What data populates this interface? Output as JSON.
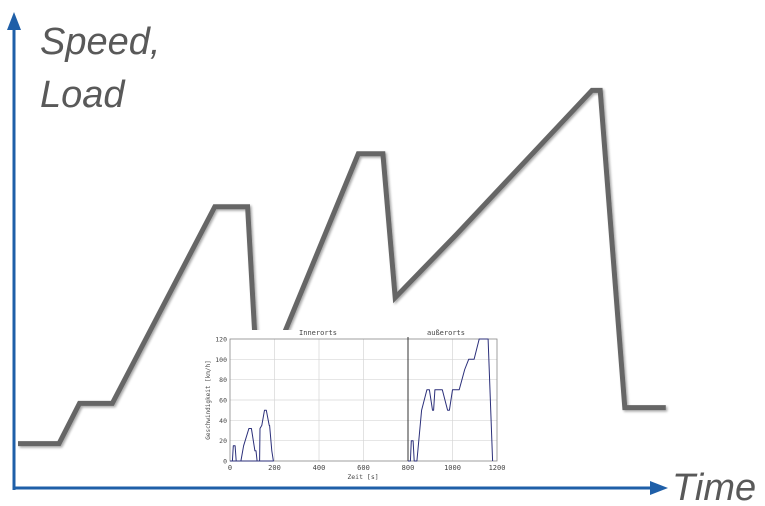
{
  "chart_data": [
    {
      "type": "line",
      "ylabel_lines": [
        "Speed,",
        "Load"
      ],
      "xlabel": "Time",
      "colors": {
        "profile": "#666666",
        "axis": "#1f5fa8"
      },
      "grid": false,
      "series": [
        {
          "x": [
            0,
            10,
            15,
            23,
            48,
            56,
            58,
            63,
            83,
            89,
            92,
            107,
            140,
            142,
            148,
            158
          ],
          "values": [
            1.05,
            1.05,
            2.0,
            2.0,
            6.65,
            6.65,
            3.2,
            3.2,
            7.9,
            7.9,
            4.5,
            6.0,
            9.4,
            9.4,
            1.9,
            1.9
          ]
        }
      ]
    },
    {
      "type": "line",
      "title_left": "Innerorts",
      "title_right": "außerorts",
      "xlabel": "Zeit [s]",
      "ylabel": "Geschwindigkeit [km/h]",
      "xlim": [
        0,
        1200
      ],
      "ylim": [
        0,
        120
      ],
      "xticks": [
        0,
        200,
        400,
        600,
        800,
        1000,
        1200
      ],
      "yticks": [
        0,
        20,
        40,
        60,
        80,
        100,
        120
      ],
      "grid": true,
      "divider_x": 800,
      "colors": {
        "line": "#2b2f7a"
      },
      "series": [
        {
          "x": [
            0,
            11,
            15,
            23,
            28,
            49,
            61,
            85,
            96,
            112,
            117,
            122,
            133,
            135,
            143,
            155,
            163,
            176,
            178,
            188,
            195,
            0
          ],
          "values": [
            0,
            0,
            15,
            15,
            0,
            0,
            15,
            32,
            32,
            10,
            10,
            0,
            0,
            32,
            35,
            50,
            50,
            35,
            35,
            10,
            0,
            0
          ]
        },
        {
          "x": [
            800,
            811,
            815,
            823,
            828,
            840,
            861,
            885,
            896,
            910,
            915,
            921,
            954,
            978,
            986,
            1000,
            1009,
            1015,
            1030,
            1055,
            1073,
            1093,
            1097,
            1120,
            1160,
            1180
          ],
          "values": [
            0,
            0,
            20,
            20,
            0,
            0,
            50,
            70,
            70,
            50,
            50,
            70,
            70,
            50,
            50,
            70,
            70,
            70,
            70,
            90,
            100,
            100,
            100,
            120,
            120,
            0
          ]
        }
      ]
    }
  ]
}
